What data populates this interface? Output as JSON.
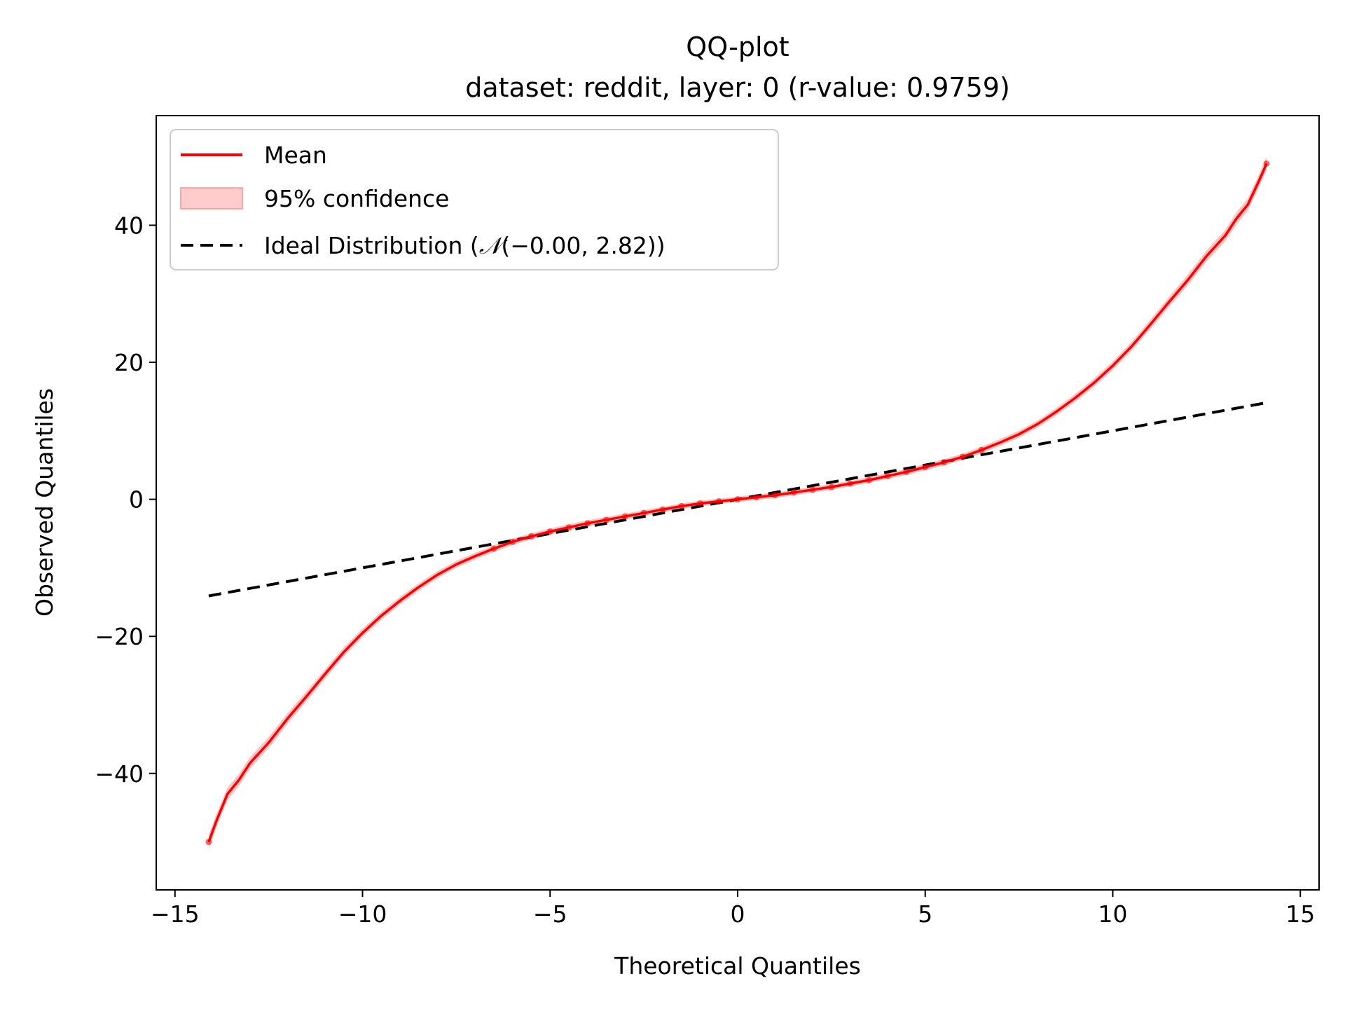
{
  "chart_data": {
    "type": "line",
    "title": "QQ-plot",
    "subtitle": "dataset: reddit, layer: 0 (r-value: 0.9759)",
    "xlabel": "Theoretical Quantiles",
    "ylabel": "Observed Quantiles",
    "xlim": [
      -15.5,
      15.5
    ],
    "ylim": [
      -57,
      56
    ],
    "xticks": [
      -15,
      -10,
      -5,
      0,
      5,
      10,
      15
    ],
    "xtick_labels": [
      "−15",
      "−10",
      "−5",
      "0",
      "5",
      "10",
      "15"
    ],
    "yticks": [
      -40,
      -20,
      0,
      20,
      40
    ],
    "ytick_labels": [
      "−40",
      "−20",
      "0",
      "20",
      "40"
    ],
    "grid": false,
    "legend_position": "top-left",
    "colors": {
      "mean": "#ff0000",
      "band": "#ffb3b3",
      "ideal": "#000000"
    },
    "series": [
      {
        "name": "Mean",
        "style": "solid",
        "x": [
          -14.1,
          -13.9,
          -13.6,
          -13.3,
          -13.0,
          -12.5,
          -12.0,
          -11.5,
          -11.0,
          -10.5,
          -10.0,
          -9.5,
          -9.0,
          -8.5,
          -8.0,
          -7.5,
          -7.0,
          -6.5,
          -6.0,
          -5.5,
          -5.0,
          -4.5,
          -4.0,
          -3.5,
          -3.0,
          -2.5,
          -2.0,
          -1.5,
          -1.0,
          -0.5,
          0.0,
          0.5,
          1.0,
          1.5,
          2.0,
          2.5,
          3.0,
          3.5,
          4.0,
          4.5,
          5.0,
          5.5,
          6.0,
          6.5,
          7.0,
          7.5,
          8.0,
          8.5,
          9.0,
          9.5,
          10.0,
          10.5,
          11.0,
          11.5,
          12.0,
          12.5,
          13.0,
          13.3,
          13.6,
          13.9,
          14.1
        ],
        "y": [
          -50.0,
          -47.0,
          -43.0,
          -41.0,
          -38.5,
          -35.5,
          -32.0,
          -28.8,
          -25.5,
          -22.3,
          -19.5,
          -17.0,
          -14.8,
          -12.8,
          -11.0,
          -9.5,
          -8.3,
          -7.2,
          -6.2,
          -5.4,
          -4.7,
          -4.1,
          -3.5,
          -3.0,
          -2.5,
          -2.0,
          -1.5,
          -1.0,
          -0.6,
          -0.3,
          0.0,
          0.3,
          0.6,
          1.0,
          1.4,
          1.8,
          2.3,
          2.8,
          3.4,
          4.0,
          4.7,
          5.4,
          6.2,
          7.2,
          8.3,
          9.5,
          11.0,
          12.8,
          14.8,
          17.0,
          19.5,
          22.3,
          25.5,
          28.8,
          32.0,
          35.5,
          38.5,
          41.0,
          43.0,
          46.5,
          49.0
        ]
      },
      {
        "name": "Ideal Distribution ($\\mathcal{N}(-0.00, 2.82)$)",
        "style": "dashed",
        "x": [
          -14.1,
          14.1
        ],
        "y": [
          -14.1,
          14.1
        ]
      }
    ],
    "confidence_band": {
      "name": "95% confidence"
    },
    "legend": {
      "mean": "Mean",
      "band": "95% confidence",
      "ideal_prefix": "Ideal Distribution (",
      "ideal_math_n": "𝒩",
      "ideal_math_args": "(−0.00, 2.82)",
      "ideal_suffix": ")"
    }
  }
}
